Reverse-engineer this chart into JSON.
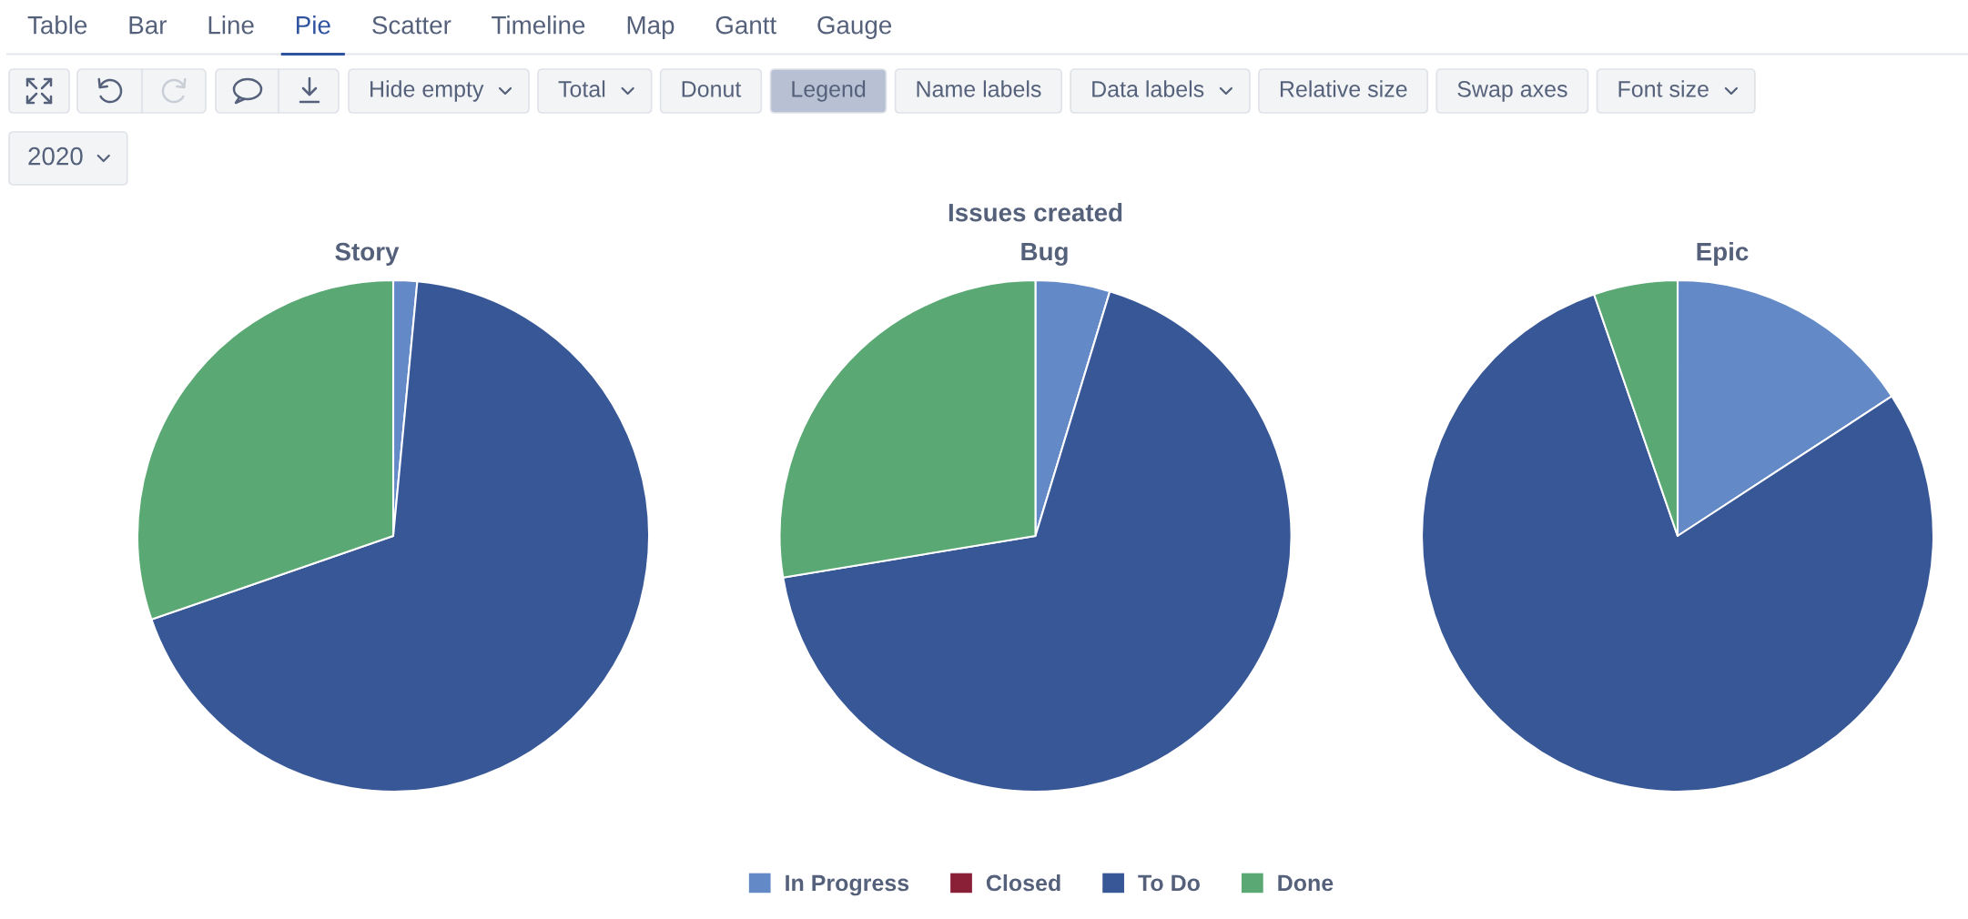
{
  "chart_data": [
    {
      "type": "other",
      "annotations": [
        "Table",
        "Bar",
        "Line",
        "Pie",
        "Scatter",
        "Timeline",
        "Map",
        "Gantt",
        "Gauge"
      ]
    },
    {
      "type": "other",
      "annotations": [
        "Hide empty",
        "Total",
        "Donut",
        "Legend",
        "Name labels",
        "Data labels",
        "Relative size",
        "Swap axes",
        "Font size"
      ]
    },
    {
      "type": "other",
      "annotations": [
        "2020"
      ]
    },
    {
      "type": "pie",
      "title": "Issues created",
      "categories": [
        "In Progress",
        "Closed",
        "To Do",
        "Done"
      ],
      "colors": [
        "#6389c7",
        "#8a1f38",
        "#385796",
        "#5aa874"
      ],
      "legend": "bottom",
      "series": [
        {
          "name": "Story",
          "values": [
            1.5,
            0,
            68.2,
            30.3
          ]
        },
        {
          "name": "Bug",
          "values": [
            4.7,
            0,
            67.7,
            27.6
          ]
        },
        {
          "name": "Epic",
          "values": [
            15.8,
            0,
            78.9,
            5.3
          ]
        }
      ]
    }
  ]
}
